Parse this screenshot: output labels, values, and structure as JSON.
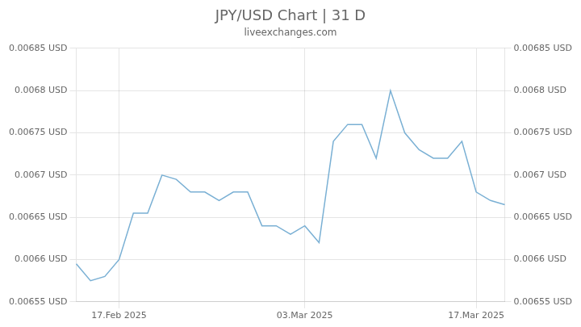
{
  "chart_data": {
    "type": "line",
    "title": "JPY/USD Chart | 31 D",
    "subtitle": "liveexchanges.com",
    "categories": [
      null,
      null,
      null,
      "17.Feb 2025",
      null,
      null,
      null,
      null,
      null,
      null,
      null,
      null,
      null,
      null,
      null,
      null,
      "03.Mar 2025",
      null,
      null,
      null,
      null,
      null,
      null,
      null,
      null,
      null,
      null,
      null,
      "17.Mar 2025",
      null,
      null
    ],
    "values": [
      0.006595,
      0.006575,
      0.00658,
      0.0066,
      0.006655,
      0.006655,
      0.0067,
      0.006695,
      0.00668,
      0.00668,
      0.00667,
      0.00668,
      0.00668,
      0.00664,
      0.00664,
      0.00663,
      0.00664,
      0.00662,
      0.00674,
      0.00676,
      0.00676,
      0.00672,
      0.0068,
      0.00675,
      0.00673,
      0.00672,
      0.00672,
      0.00674,
      0.00668,
      0.00667,
      0.006665
    ],
    "color": "#7ab0d4",
    "ylim": [
      0.00655,
      0.00685
    ],
    "yticks": [
      {
        "value": 0.00655,
        "label": "0.00655 USD"
      },
      {
        "value": 0.0066,
        "label": "0.0066 USD"
      },
      {
        "value": 0.00665,
        "label": "0.00665 USD"
      },
      {
        "value": 0.0067,
        "label": "0.0067 USD"
      },
      {
        "value": 0.00675,
        "label": "0.00675 USD"
      },
      {
        "value": 0.0068,
        "label": "0.0068 USD"
      },
      {
        "value": 0.00685,
        "label": "0.00685 USD"
      }
    ],
    "grid": true
  }
}
